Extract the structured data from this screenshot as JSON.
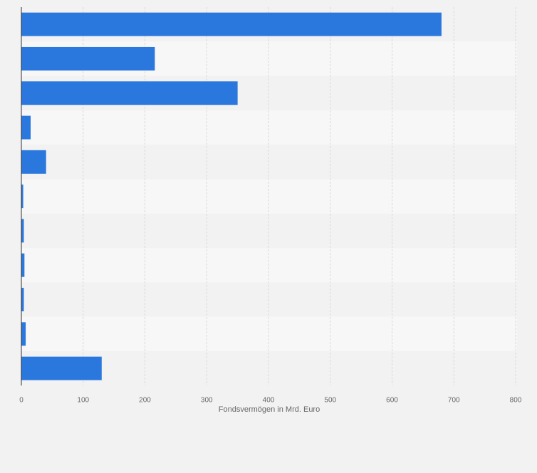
{
  "colors": {
    "page_background": "#f2f2f2",
    "band_dark": "#f2f2f2",
    "band_light": "#f7f7f7",
    "bar": "#2a77de",
    "grid": "#d9d9d9",
    "axis": "#333333",
    "tick_text": "#666666"
  },
  "chart_data": {
    "type": "bar",
    "orientation": "horizontal",
    "categories": [
      "",
      "",
      "",
      "",
      "",
      "",
      "",
      "",
      "",
      "",
      ""
    ],
    "values": [
      680,
      216,
      350,
      15,
      40,
      3,
      4,
      5,
      4,
      7,
      130
    ],
    "xlabel": "Fondsvermögen in Mrd. Euro",
    "ylabel": "",
    "xlim": [
      0,
      800
    ],
    "x_ticks": [
      "0",
      "100",
      "200",
      "300",
      "400",
      "500",
      "600",
      "700",
      "800"
    ],
    "grid": "vertical dashed",
    "legend": "none"
  }
}
